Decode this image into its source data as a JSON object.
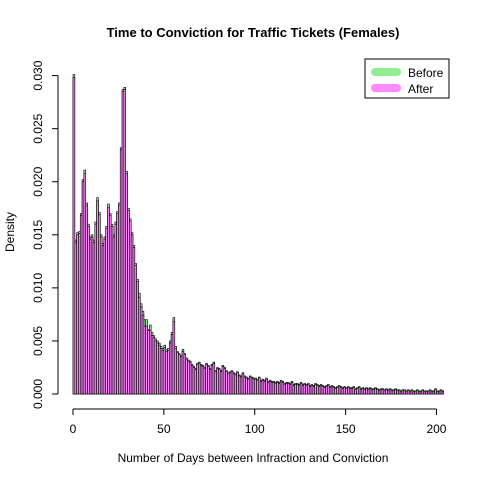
{
  "chart_data": {
    "type": "bar",
    "title": "Time to Conviction for Traffic Tickets (Females)",
    "xlabel": "Number of Days between Infraction and Conviction",
    "ylabel": "Density",
    "xlim": [
      0,
      208
    ],
    "ylim": [
      0,
      0.031
    ],
    "x_ticks": [
      0,
      50,
      100,
      150,
      200
    ],
    "y_ticks": [
      0.0,
      0.005,
      0.01,
      0.015,
      0.02,
      0.025,
      0.03
    ],
    "y_tick_labels": [
      "0.000",
      "0.005",
      "0.010",
      "0.015",
      "0.020",
      "0.025",
      "0.030"
    ],
    "grid": false,
    "legend_position": "top-right",
    "bin_width": 1,
    "series": [
      {
        "name": "Before",
        "color": "#90ee90",
        "values": [
          0.0301,
          0.0145,
          0.0152,
          0.0153,
          0.017,
          0.0202,
          0.0211,
          0.018,
          0.016,
          0.0148,
          0.015,
          0.0145,
          0.0162,
          0.0185,
          0.0171,
          0.015,
          0.0142,
          0.0148,
          0.0158,
          0.0179,
          0.017,
          0.016,
          0.015,
          0.0162,
          0.0172,
          0.018,
          0.0232,
          0.0287,
          0.0289,
          0.021,
          0.0175,
          0.0165,
          0.0152,
          0.014,
          0.0123,
          0.0108,
          0.0095,
          0.0085,
          0.0078,
          0.007,
          0.007,
          0.0061,
          0.0065,
          0.0058,
          0.0055,
          0.0052,
          0.005,
          0.0048,
          0.0045,
          0.0043,
          0.0046,
          0.0042,
          0.0043,
          0.005,
          0.0058,
          0.0072,
          0.0045,
          0.004,
          0.0038,
          0.0036,
          0.0042,
          0.0038,
          0.0034,
          0.0032,
          0.0031,
          0.0028,
          0.0026,
          0.0024,
          0.0029,
          0.003,
          0.0028,
          0.0027,
          0.0025,
          0.0029,
          0.0027,
          0.0024,
          0.0028,
          0.003,
          0.0022,
          0.0025,
          0.0024,
          0.0022,
          0.0027,
          0.0025,
          0.0022,
          0.002,
          0.0021,
          0.0022,
          0.002,
          0.0019,
          0.0021,
          0.0018,
          0.0017,
          0.002,
          0.0017,
          0.0016,
          0.0015,
          0.0017,
          0.0016,
          0.0015,
          0.0015,
          0.0014,
          0.0016,
          0.0013,
          0.0014,
          0.0013,
          0.0015,
          0.0012,
          0.0013,
          0.0012,
          0.0012,
          0.0011,
          0.0012,
          0.0011,
          0.0013,
          0.0012,
          0.001,
          0.0011,
          0.0011,
          0.001,
          0.0012,
          0.0009,
          0.001,
          0.001,
          0.0009,
          0.0011,
          0.0009,
          0.001,
          0.0009,
          0.001,
          0.0008,
          0.0009,
          0.0008,
          0.001,
          0.0009,
          0.0008,
          0.0009,
          0.0008,
          0.0007,
          0.0008,
          0.0009,
          0.0007,
          0.0008,
          0.0007,
          0.0006,
          0.0007,
          0.0008,
          0.0007,
          0.0006,
          0.0007,
          0.0006,
          0.0007,
          0.0006,
          0.0006,
          0.0007,
          0.0005,
          0.0006,
          0.0007,
          0.0005,
          0.0006,
          0.0005,
          0.0006,
          0.0005,
          0.0006,
          0.0005,
          0.0005,
          0.0006,
          0.0005,
          0.0004,
          0.0005,
          0.0005,
          0.0004,
          0.0005,
          0.0004,
          0.0005,
          0.0004,
          0.0004,
          0.0005,
          0.0004,
          0.0004,
          0.0003,
          0.0004,
          0.0004,
          0.0003,
          0.0004,
          0.0003,
          0.0004,
          0.0003,
          0.0003,
          0.0004,
          0.0003,
          0.0003,
          0.0004,
          0.0003,
          0.0003,
          0.0003,
          0.0004,
          0.0003,
          0.0003,
          0.0005,
          0.0003,
          0.0003,
          0.0004,
          0.0003
        ]
      },
      {
        "name": "After",
        "color": "#ff88ff",
        "values": [
          0.0298,
          0.0143,
          0.015,
          0.0151,
          0.0168,
          0.02,
          0.0208,
          0.0178,
          0.0158,
          0.0146,
          0.0148,
          0.0143,
          0.016,
          0.0182,
          0.0169,
          0.0148,
          0.014,
          0.0146,
          0.0156,
          0.0176,
          0.0168,
          0.0158,
          0.0148,
          0.016,
          0.017,
          0.0178,
          0.023,
          0.0285,
          0.0287,
          0.0208,
          0.0173,
          0.0163,
          0.015,
          0.0138,
          0.0121,
          0.0106,
          0.0091,
          0.0082,
          0.0074,
          0.0064,
          0.0064,
          0.006,
          0.006,
          0.0055,
          0.0053,
          0.005,
          0.0048,
          0.0046,
          0.0043,
          0.0041,
          0.0044,
          0.004,
          0.0041,
          0.0048,
          0.0056,
          0.0068,
          0.0043,
          0.0039,
          0.0037,
          0.0035,
          0.004,
          0.0037,
          0.0033,
          0.0031,
          0.003,
          0.0027,
          0.0025,
          0.0023,
          0.0028,
          0.0029,
          0.0027,
          0.0026,
          0.0024,
          0.0028,
          0.0026,
          0.0023,
          0.0027,
          0.0029,
          0.0021,
          0.0024,
          0.0023,
          0.0021,
          0.0026,
          0.0024,
          0.0021,
          0.0019,
          0.002,
          0.0021,
          0.0019,
          0.0018,
          0.002,
          0.0017,
          0.0016,
          0.0019,
          0.0016,
          0.0015,
          0.0014,
          0.0016,
          0.0015,
          0.0014,
          0.0014,
          0.0013,
          0.0015,
          0.0012,
          0.0013,
          0.0012,
          0.0014,
          0.0011,
          0.0012,
          0.0011,
          0.0011,
          0.001,
          0.0011,
          0.001,
          0.0012,
          0.0011,
          0.0009,
          0.001,
          0.001,
          0.0009,
          0.0011,
          0.0008,
          0.0009,
          0.0009,
          0.0008,
          0.001,
          0.0008,
          0.0009,
          0.0008,
          0.0009,
          0.0007,
          0.0008,
          0.0007,
          0.0009,
          0.0008,
          0.0007,
          0.0008,
          0.0007,
          0.0006,
          0.0007,
          0.0008,
          0.0006,
          0.0007,
          0.0006,
          0.0005,
          0.0006,
          0.0007,
          0.0006,
          0.0005,
          0.0006,
          0.0005,
          0.0006,
          0.0005,
          0.0005,
          0.0006,
          0.0004,
          0.0005,
          0.0006,
          0.0004,
          0.0005,
          0.0004,
          0.0005,
          0.0004,
          0.0005,
          0.0004,
          0.0004,
          0.0005,
          0.0004,
          0.0003,
          0.0004,
          0.0004,
          0.0003,
          0.0004,
          0.0003,
          0.0004,
          0.0003,
          0.0003,
          0.0004,
          0.0003,
          0.0003,
          0.0002,
          0.0003,
          0.0003,
          0.0002,
          0.0003,
          0.0002,
          0.0003,
          0.0002,
          0.0002,
          0.0003,
          0.0002,
          0.0002,
          0.0003,
          0.0002,
          0.0002,
          0.0002,
          0.0003,
          0.0002,
          0.0002,
          0.0004,
          0.0002,
          0.0002,
          0.0003,
          0.0002
        ]
      }
    ]
  }
}
